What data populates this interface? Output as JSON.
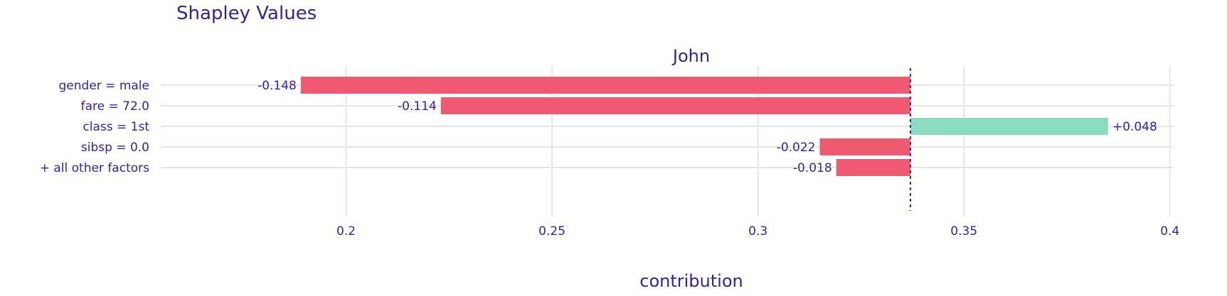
{
  "chart_data": {
    "type": "bar",
    "orientation": "horizontal",
    "title": "Shapley Values",
    "subtitle": "John",
    "xlabel": "contribution",
    "baseline": 0.337,
    "xlim": [
      0.155,
      0.413
    ],
    "xticks": [
      0.2,
      0.25,
      0.3,
      0.35,
      0.4
    ],
    "xtick_labels": [
      "0.2",
      "0.25",
      "0.3",
      "0.35",
      "0.4"
    ],
    "grid": true,
    "categories": [
      "gender = male",
      "fare = 72.0",
      "class = 1st",
      "sibsp = 0.0",
      "+ all other factors"
    ],
    "values": [
      -0.148,
      -0.114,
      0.048,
      -0.022,
      -0.018
    ],
    "value_labels": [
      "-0.148",
      "-0.114",
      "+0.048",
      "-0.022",
      "-0.018"
    ],
    "colors": {
      "negative": "#f05a71",
      "positive": "#8bdcbe",
      "baseline": "#371ea3",
      "text": "#371ea3",
      "grid": "#e6e6e6"
    }
  }
}
